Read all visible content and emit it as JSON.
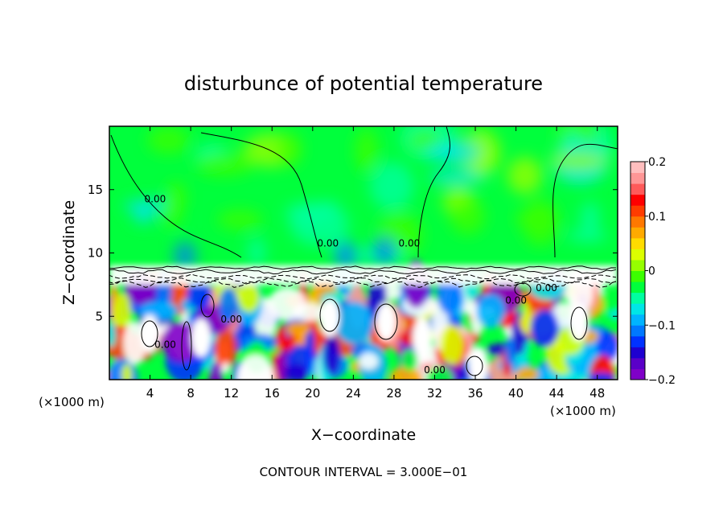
{
  "chart_data": {
    "type": "heatmap",
    "title": "disturbunce of potential temperature",
    "xlabel": "X−coordinate",
    "ylabel": "Z−coordinate",
    "x_unit_left": "(×1000 m)",
    "x_unit_right": "(×1000 m)",
    "x_ticks": [
      {
        "value": 4,
        "label": "4"
      },
      {
        "value": 8,
        "label": "8"
      },
      {
        "value": 12,
        "label": "12"
      },
      {
        "value": 16,
        "label": "16"
      },
      {
        "value": 20,
        "label": "20"
      },
      {
        "value": 24,
        "label": "24"
      },
      {
        "value": 28,
        "label": "28"
      },
      {
        "value": 32,
        "label": "32"
      },
      {
        "value": 36,
        "label": "36"
      },
      {
        "value": 40,
        "label": "40"
      },
      {
        "value": 44,
        "label": "44"
      },
      {
        "value": 48,
        "label": "48"
      }
    ],
    "y_ticks": [
      {
        "value": 5,
        "label": "5"
      },
      {
        "value": 10,
        "label": "10"
      },
      {
        "value": 15,
        "label": "15"
      }
    ],
    "xlim": [
      0,
      50
    ],
    "ylim": [
      0,
      20
    ],
    "colorbar": {
      "min": -0.2,
      "max": 0.2,
      "ticks": [
        {
          "value": 0.2,
          "label": "0.2"
        },
        {
          "value": 0.1,
          "label": "0.1"
        },
        {
          "value": 0,
          "label": "0"
        },
        {
          "value": -0.1,
          "label": "−0.1"
        },
        {
          "value": -0.2,
          "label": "−0.2"
        }
      ],
      "colors": [
        "#7f00c8",
        "#5a00c8",
        "#1e00d0",
        "#0032ff",
        "#0078ff",
        "#00b4ff",
        "#00e6e6",
        "#00ffa0",
        "#00ff3c",
        "#3cff00",
        "#96ff00",
        "#dcff00",
        "#ffdc00",
        "#ffaa00",
        "#ff7800",
        "#ff3c00",
        "#ff0000",
        "#ff5a5a",
        "#ff9696",
        "#ffbebe"
      ]
    },
    "contour_labels": [
      {
        "x": 4.5,
        "y": 14,
        "label": "0.00"
      },
      {
        "x": 21.5,
        "y": 10.5,
        "label": "0.00"
      },
      {
        "x": 29.5,
        "y": 10.5,
        "label": "0.00"
      },
      {
        "x": 12,
        "y": 4.5,
        "label": "0.00"
      },
      {
        "x": 5.5,
        "y": 2.5,
        "label": "0.00"
      },
      {
        "x": 32,
        "y": 0.5,
        "label": "0.00"
      },
      {
        "x": 40,
        "y": 6,
        "label": "0.00"
      },
      {
        "x": 43,
        "y": 7,
        "label": "0.00"
      }
    ],
    "footer": "CONTOUR INTERVAL = 3.000E−01"
  }
}
